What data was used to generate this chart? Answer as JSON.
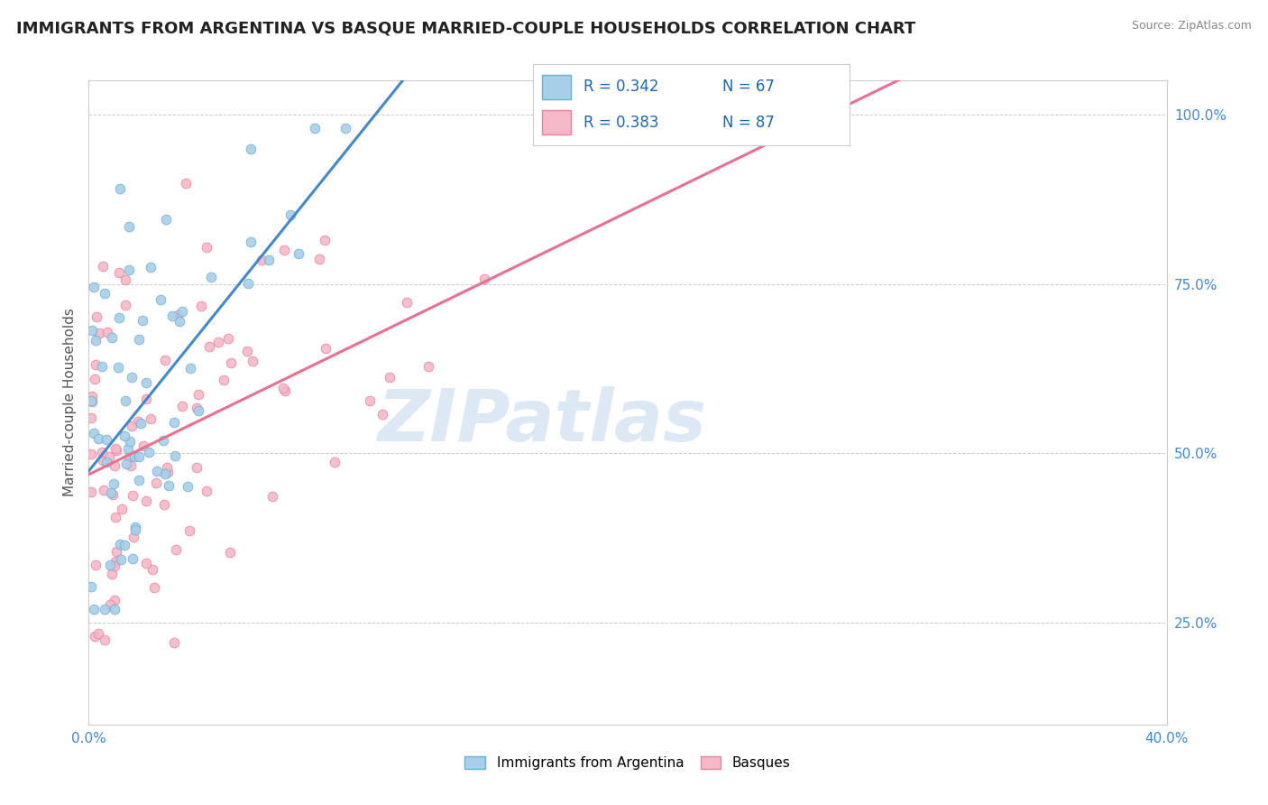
{
  "title": "IMMIGRANTS FROM ARGENTINA VS BASQUE MARRIED-COUPLE HOUSEHOLDS CORRELATION CHART",
  "source": "Source: ZipAtlas.com",
  "ylabel": "Married-couple Households",
  "xmin": 0.0,
  "xmax": 0.4,
  "ymin": 0.1,
  "ymax": 1.05,
  "blue_R": 0.342,
  "blue_N": 67,
  "pink_R": 0.383,
  "pink_N": 87,
  "blue_scatter_color": "#a8cfe8",
  "pink_scatter_color": "#f5b8c8",
  "blue_edge_color": "#6aaed6",
  "pink_edge_color": "#e8829a",
  "trend_blue_color": "#4488cc",
  "trend_pink_color": "#e87090",
  "trend_gray_color": "#aaaaaa",
  "legend_color": "#2166ac",
  "watermark_color": "#dde8f5",
  "watermark_text": "ZIPatlas",
  "legend_label_blue": "Immigrants from Argentina",
  "legend_label_pink": "Basques",
  "background_color": "#ffffff",
  "grid_color": "#cccccc",
  "ytick_color": "#4488cc",
  "title_color": "#222222",
  "source_color": "#888888"
}
